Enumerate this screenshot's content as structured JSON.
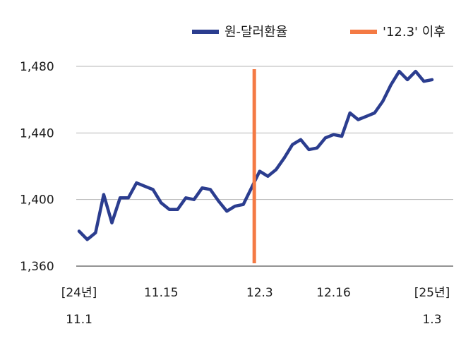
{
  "chart_data": {
    "type": "line",
    "legend": {
      "placement": "top-right",
      "items": [
        {
          "label": "원-달러환율",
          "color": "#2b3d8f",
          "marker": "line"
        },
        {
          "label": "'12.3' 이후",
          "color": "#f47a44",
          "marker": "line"
        }
      ]
    },
    "y_axis": {
      "ylim": [
        1360,
        1480
      ],
      "ticks": [
        1360,
        1400,
        1440,
        1480
      ],
      "tick_labels": [
        "1,360",
        "1,400",
        "1,440",
        "1,480"
      ]
    },
    "x_axis": {
      "tick_labels": [
        {
          "index": 0,
          "line1": "[24년]",
          "line2": "11.1"
        },
        {
          "index": 10,
          "line1": "11.15",
          "line2": ""
        },
        {
          "index": 22,
          "line1": "12.3",
          "line2": ""
        },
        {
          "index": 31,
          "line1": "12.16",
          "line2": ""
        },
        {
          "index": 43,
          "line1": "[25년]",
          "line2": "1.3"
        }
      ]
    },
    "grid": true,
    "series": [
      {
        "name": "원-달러환율",
        "color": "#2b3d8f",
        "values": [
          1381,
          1376,
          1380,
          1403,
          1386,
          1401,
          1401,
          1410,
          1408,
          1406,
          1398,
          1394,
          1394,
          1401,
          1400,
          1407,
          1406,
          1399,
          1393,
          1396,
          1397,
          1407,
          1417,
          1414,
          1418,
          1425,
          1433,
          1436,
          1430,
          1431,
          1437,
          1439,
          1438,
          1452,
          1448,
          1450,
          1452,
          1459,
          1469,
          1477,
          1472,
          1477,
          1471,
          1472
        ]
      }
    ],
    "marker_line": {
      "label": "'12.3' 이후",
      "index": 21,
      "color": "#f47a44"
    }
  }
}
